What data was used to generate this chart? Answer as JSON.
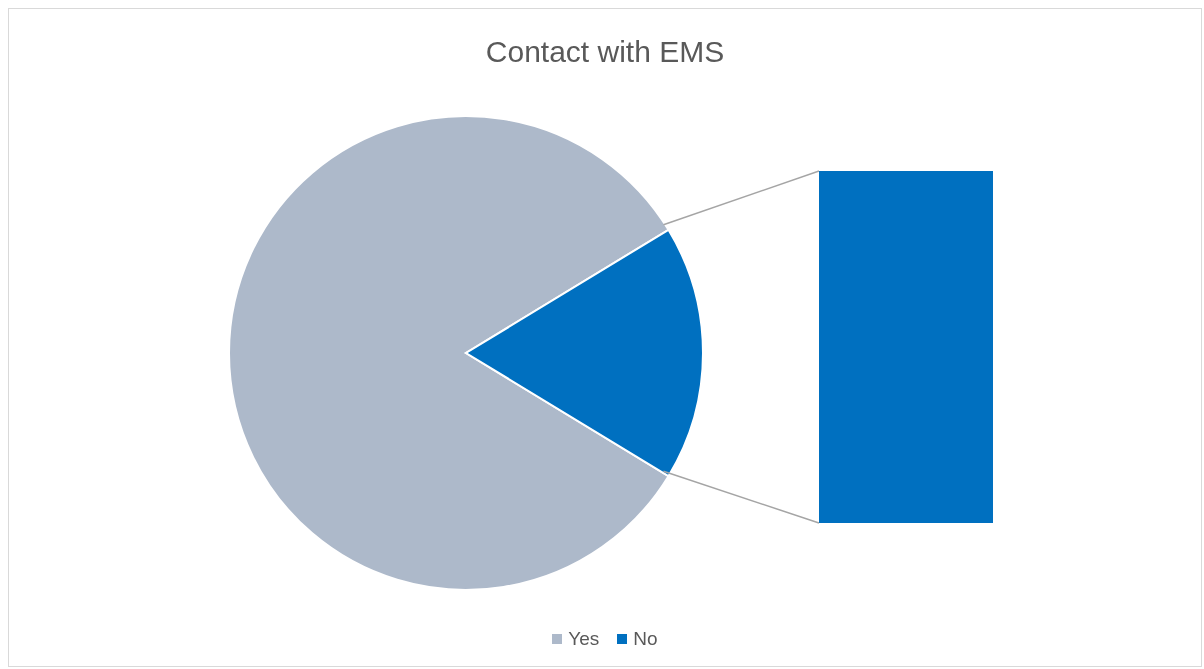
{
  "chart_data": {
    "type": "pie",
    "title": "Contact with EMS",
    "categories": [
      "Yes",
      "No"
    ],
    "values": [
      82.6,
      17.4
    ],
    "colors": [
      "#adb9ca",
      "#0070c0"
    ],
    "legend": "bottom"
  }
}
